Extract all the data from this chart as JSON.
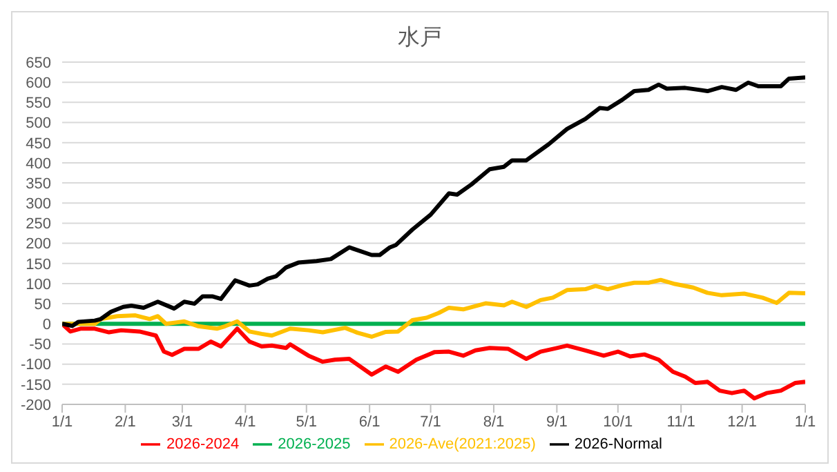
{
  "chart_data": {
    "type": "line",
    "title": "水戸",
    "xlim": [
      "2026-01-01",
      "2027-01-01"
    ],
    "xticks": [
      {
        "value": "2026-01-01",
        "label": "1/1"
      },
      {
        "value": "2026-02-01",
        "label": "2/1"
      },
      {
        "value": "2026-03-01",
        "label": "3/1"
      },
      {
        "value": "2026-04-01",
        "label": "4/1"
      },
      {
        "value": "2026-05-01",
        "label": "5/1"
      },
      {
        "value": "2026-06-01",
        "label": "6/1"
      },
      {
        "value": "2026-07-01",
        "label": "7/1"
      },
      {
        "value": "2026-08-01",
        "label": "8/1"
      },
      {
        "value": "2026-09-01",
        "label": "9/1"
      },
      {
        "value": "2026-10-01",
        "label": "10/1"
      },
      {
        "value": "2026-11-01",
        "label": "11/1"
      },
      {
        "value": "2026-12-01",
        "label": "12/1"
      },
      {
        "value": "2027-01-01",
        "label": "1/1"
      }
    ],
    "ylim": [
      -200,
      650
    ],
    "yticks": [
      -200,
      -150,
      -100,
      -50,
      0,
      50,
      100,
      150,
      200,
      250,
      300,
      350,
      400,
      450,
      500,
      550,
      600,
      650
    ],
    "grid": "y",
    "legend": "bottom",
    "marker": "none",
    "line_style": "solid",
    "series": [
      {
        "name": "2026-2024",
        "color": "#ff0000",
        "x": [
          "2026-01-01",
          "2026-01-05",
          "2026-01-10",
          "2026-01-17",
          "2026-01-24",
          "2026-01-30",
          "2026-02-08",
          "2026-02-16",
          "2026-02-20",
          "2026-02-24",
          "2026-03-02",
          "2026-03-09",
          "2026-03-15",
          "2026-03-20",
          "2026-03-28",
          "2026-04-03",
          "2026-04-09",
          "2026-04-14",
          "2026-04-21",
          "2026-04-23",
          "2026-05-02",
          "2026-05-09",
          "2026-05-15",
          "2026-05-22",
          "2026-06-02",
          "2026-06-09",
          "2026-06-15",
          "2026-06-24",
          "2026-07-03",
          "2026-07-10",
          "2026-07-17",
          "2026-07-23",
          "2026-07-30",
          "2026-08-08",
          "2026-08-17",
          "2026-08-24",
          "2026-09-01",
          "2026-09-06",
          "2026-09-15",
          "2026-09-24",
          "2026-10-01",
          "2026-10-07",
          "2026-10-14",
          "2026-10-21",
          "2026-10-28",
          "2026-11-03",
          "2026-11-08",
          "2026-11-14",
          "2026-11-20",
          "2026-11-26",
          "2026-12-02",
          "2026-12-07",
          "2026-12-13",
          "2026-12-20",
          "2026-12-27",
          "2027-01-01"
        ],
        "values": [
          0,
          -19,
          -12,
          -12,
          -21,
          -16,
          -19,
          -29,
          -69,
          -77,
          -62,
          -62,
          -44,
          -56,
          -12,
          -44,
          -56,
          -54,
          -60,
          -51,
          -79,
          -94,
          -89,
          -87,
          -126,
          -106,
          -119,
          -89,
          -70,
          -69,
          -79,
          -66,
          -60,
          -62,
          -87,
          -69,
          -60,
          -54,
          -66,
          -79,
          -69,
          -81,
          -76,
          -89,
          -119,
          -131,
          -147,
          -144,
          -166,
          -172,
          -166,
          -185,
          -172,
          -166,
          -147,
          -144
        ]
      },
      {
        "name": "2026-2025",
        "color": "#00b050",
        "x": [
          "2026-01-01",
          "2027-01-01"
        ],
        "values": [
          0,
          0
        ]
      },
      {
        "name": "2026-Ave(2021:2025)",
        "color": "#ffc000",
        "x": [
          "2026-01-01",
          "2026-01-10",
          "2026-01-17",
          "2026-01-20",
          "2026-01-28",
          "2026-02-06",
          "2026-02-13",
          "2026-02-17",
          "2026-02-21",
          "2026-03-02",
          "2026-03-09",
          "2026-03-18",
          "2026-03-22",
          "2026-03-28",
          "2026-04-03",
          "2026-04-09",
          "2026-04-14",
          "2026-04-23",
          "2026-05-02",
          "2026-05-09",
          "2026-05-20",
          "2026-05-26",
          "2026-06-02",
          "2026-06-09",
          "2026-06-15",
          "2026-06-22",
          "2026-06-29",
          "2026-07-05",
          "2026-07-10",
          "2026-07-17",
          "2026-07-28",
          "2026-08-06",
          "2026-08-10",
          "2026-08-17",
          "2026-08-24",
          "2026-08-30",
          "2026-09-06",
          "2026-09-15",
          "2026-09-20",
          "2026-09-26",
          "2026-10-03",
          "2026-10-09",
          "2026-10-16",
          "2026-10-22",
          "2026-10-29",
          "2026-11-07",
          "2026-11-14",
          "2026-11-21",
          "2026-12-02",
          "2026-12-11",
          "2026-12-18",
          "2026-12-24",
          "2027-01-01"
        ],
        "values": [
          0,
          0,
          0,
          12,
          19,
          21,
          12,
          19,
          0,
          6,
          -6,
          -12,
          -6,
          6,
          -19,
          -25,
          -29,
          -12,
          -16,
          -21,
          -10,
          -22,
          -32,
          -20,
          -19,
          9,
          15,
          27,
          40,
          36,
          51,
          46,
          55,
          42,
          59,
          65,
          84,
          86,
          94,
          86,
          96,
          102,
          102,
          109,
          99,
          90,
          77,
          71,
          75,
          65,
          52,
          77,
          76
        ]
      },
      {
        "name": "2026-Normal",
        "color": "#000000",
        "x": [
          "2026-01-01",
          "2026-01-06",
          "2026-01-09",
          "2026-01-17",
          "2026-01-20",
          "2026-01-25",
          "2026-01-31",
          "2026-02-04",
          "2026-02-10",
          "2026-02-17",
          "2026-02-25",
          "2026-03-02",
          "2026-03-07",
          "2026-03-11",
          "2026-03-16",
          "2026-03-20",
          "2026-03-27",
          "2026-04-03",
          "2026-04-07",
          "2026-04-12",
          "2026-04-16",
          "2026-04-21",
          "2026-04-27",
          "2026-05-06",
          "2026-05-13",
          "2026-05-22",
          "2026-06-02",
          "2026-06-06",
          "2026-06-11",
          "2026-06-14",
          "2026-06-22",
          "2026-07-01",
          "2026-07-10",
          "2026-07-14",
          "2026-07-21",
          "2026-07-30",
          "2026-08-06",
          "2026-08-10",
          "2026-08-17",
          "2026-08-28",
          "2026-09-06",
          "2026-09-15",
          "2026-09-22",
          "2026-09-26",
          "2026-10-03",
          "2026-10-09",
          "2026-10-16",
          "2026-10-21",
          "2026-10-25",
          "2026-11-03",
          "2026-11-14",
          "2026-11-21",
          "2026-11-28",
          "2026-12-04",
          "2026-12-09",
          "2026-12-20",
          "2026-12-24",
          "2027-01-01"
        ],
        "values": [
          0,
          -5,
          5,
          8,
          12,
          30,
          42,
          45,
          40,
          55,
          38,
          55,
          50,
          68,
          68,
          62,
          108,
          95,
          98,
          112,
          118,
          140,
          152,
          156,
          161,
          190,
          171,
          171,
          190,
          196,
          234,
          271,
          324,
          321,
          346,
          384,
          390,
          406,
          406,
          446,
          484,
          509,
          536,
          534,
          556,
          578,
          581,
          594,
          584,
          586,
          578,
          588,
          581,
          599,
          590,
          590,
          609,
          612
        ]
      }
    ]
  }
}
